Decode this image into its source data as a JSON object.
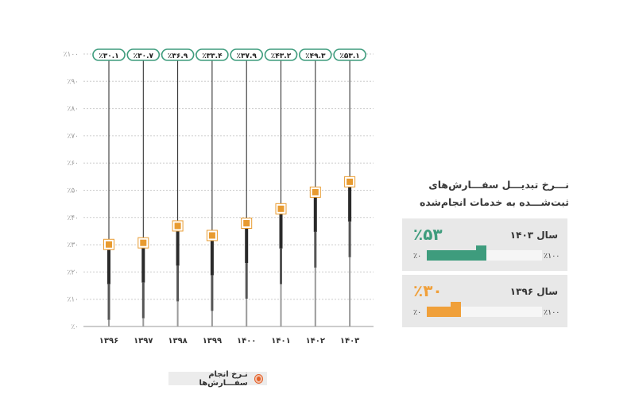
{
  "chart_data": {
    "type": "line",
    "title": "",
    "xlabel": "",
    "ylabel": "",
    "categories": [
      "۱۳۹۶",
      "۱۳۹۷",
      "۱۳۹۸",
      "۱۳۹۹",
      "۱۴۰۰",
      "۱۴۰۱",
      "۱۴۰۲",
      "۱۴۰۳"
    ],
    "values": [
      30.1,
      30.7,
      36.9,
      33.4,
      37.9,
      43.2,
      49.3,
      53.1
    ],
    "value_labels": [
      "٪۳۰.۱",
      "٪۳۰.۷",
      "٪۳۶.۹",
      "٪۳۳.۴",
      "٪۳۷.۹",
      "٪۴۳.۲",
      "٪۴۹.۳",
      "٪۵۳.۱"
    ],
    "ylim": [
      0,
      100
    ],
    "y_ticks": [
      0,
      10,
      20,
      30,
      40,
      50,
      60,
      70,
      80,
      90,
      100
    ],
    "y_tick_labels": [
      "٪۰",
      "٪۱۰",
      "٪۲۰",
      "٪۳۰",
      "٪۴۰",
      "٪۵۰",
      "٪۶۰",
      "٪۷۰",
      "٪۸۰",
      "٪۹۰",
      "٪۱۰۰"
    ],
    "grid": true,
    "legend": {
      "position": "bottom",
      "label": "نـرخ انجام سفـــارش‌ها"
    }
  },
  "sidebar": {
    "title": "نـــرخ تبدیـــل سفـــارش‌های ثبت‌شـــده به خدمات انجام‌شده",
    "cards": [
      {
        "year_label": "سال ۱۴۰۳",
        "value_label": "٪۵۳",
        "value": 53,
        "color": "#3e9c7d",
        "max_label": "٪۱۰۰",
        "min_label": "٪۰"
      },
      {
        "year_label": "سال ۱۳۹۶",
        "value_label": "٪۳۰",
        "value": 30,
        "color": "#f0a03a",
        "max_label": "٪۱۰۰",
        "min_label": "٪۰"
      }
    ]
  },
  "colors": {
    "accent_green": "#3e9c7d",
    "accent_orange": "#e89b30",
    "dark_bar": "#3a3a3a",
    "grid": "#cccccc"
  }
}
